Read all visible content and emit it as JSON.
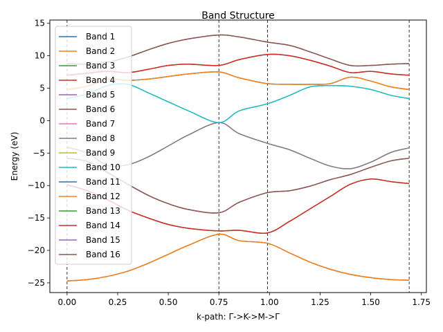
{
  "chart_data": {
    "type": "line",
    "title": "Band Structure",
    "xlabel": "k-path: Γ->K->M->Γ",
    "ylabel": "Energy (eV)",
    "xlim": [
      -0.085,
      1.775
    ],
    "ylim": [
      -26.5,
      15.5
    ],
    "xticks": [
      0.0,
      0.25,
      0.5,
      0.75,
      1.0,
      1.25,
      1.5,
      1.75
    ],
    "xtick_labels": [
      "0.00",
      "0.25",
      "0.50",
      "0.75",
      "1.00",
      "1.25",
      "1.50",
      "1.75"
    ],
    "yticks": [
      -25,
      -20,
      -15,
      -10,
      -5,
      0,
      5,
      10,
      15
    ],
    "ytick_labels": [
      "−25",
      "−20",
      "−15",
      "−10",
      "−5",
      "0",
      "5",
      "10",
      "15"
    ],
    "high_symmetry_lines": [
      0.0,
      0.75,
      0.99,
      1.69
    ],
    "grid": false,
    "legend_position": "upper-left",
    "series": [
      {
        "name": "Band 1",
        "color": "#1f77b4",
        "x": [
          0.0,
          0.1,
          0.2,
          0.3,
          0.4,
          0.5,
          0.6,
          0.75,
          0.85,
          0.99,
          1.1,
          1.2,
          1.3,
          1.4,
          1.5,
          1.6,
          1.69
        ],
        "values": [
          -24.7,
          -24.5,
          -24.0,
          -23.2,
          -22.0,
          -20.6,
          -19.2,
          -17.5,
          -18.5,
          -18.9,
          -20.4,
          -21.8,
          -22.9,
          -23.7,
          -24.2,
          -24.5,
          -24.6
        ]
      },
      {
        "name": "Band 2",
        "color": "#ff7f0e",
        "x": [
          0.0,
          0.1,
          0.2,
          0.3,
          0.4,
          0.5,
          0.6,
          0.75,
          0.85,
          0.99,
          1.1,
          1.2,
          1.3,
          1.4,
          1.5,
          1.6,
          1.69
        ],
        "values": [
          -24.7,
          -24.5,
          -24.0,
          -23.2,
          -22.0,
          -20.6,
          -19.2,
          -17.5,
          -18.5,
          -18.9,
          -20.4,
          -21.8,
          -22.9,
          -23.7,
          -24.2,
          -24.5,
          -24.6
        ]
      },
      {
        "name": "Band 3",
        "color": "#2ca02c",
        "x": [
          0.0,
          0.1,
          0.2,
          0.3,
          0.4,
          0.5,
          0.6,
          0.75,
          0.85,
          0.99,
          1.1,
          1.2,
          1.3,
          1.4,
          1.5,
          1.6,
          1.69
        ],
        "values": [
          -9.9,
          -10.8,
          -12.2,
          -13.8,
          -15.0,
          -16.0,
          -16.6,
          -17.0,
          -16.9,
          -17.3,
          -15.5,
          -13.6,
          -11.7,
          -9.8,
          -9.0,
          -9.4,
          -9.7
        ]
      },
      {
        "name": "Band 4",
        "color": "#d62728",
        "x": [
          0.0,
          0.1,
          0.2,
          0.3,
          0.4,
          0.5,
          0.6,
          0.75,
          0.85,
          0.99,
          1.1,
          1.2,
          1.3,
          1.4,
          1.5,
          1.6,
          1.69
        ],
        "values": [
          -9.9,
          -10.8,
          -12.2,
          -13.8,
          -15.0,
          -16.0,
          -16.6,
          -17.0,
          -16.9,
          -17.3,
          -15.5,
          -13.6,
          -11.7,
          -9.8,
          -9.0,
          -9.4,
          -9.7
        ]
      },
      {
        "name": "Band 5",
        "color": "#9467bd",
        "x": [
          0.0,
          0.1,
          0.2,
          0.3,
          0.4,
          0.5,
          0.6,
          0.75,
          0.85,
          0.99,
          1.1,
          1.2,
          1.3,
          1.4,
          1.5,
          1.6,
          1.69
        ],
        "values": [
          -5.8,
          -6.3,
          -8.0,
          -9.8,
          -11.5,
          -12.8,
          -13.7,
          -14.2,
          -12.6,
          -11.1,
          -10.8,
          -10.1,
          -9.1,
          -8.3,
          -7.2,
          -6.2,
          -5.8
        ]
      },
      {
        "name": "Band 6",
        "color": "#8c564b",
        "x": [
          0.0,
          0.1,
          0.2,
          0.3,
          0.4,
          0.5,
          0.6,
          0.75,
          0.85,
          0.99,
          1.1,
          1.2,
          1.3,
          1.4,
          1.5,
          1.6,
          1.69
        ],
        "values": [
          -5.8,
          -6.3,
          -8.0,
          -9.8,
          -11.5,
          -12.8,
          -13.7,
          -14.2,
          -12.6,
          -11.1,
          -10.8,
          -10.1,
          -9.1,
          -8.3,
          -7.2,
          -6.2,
          -5.8
        ]
      },
      {
        "name": "Band 7",
        "color": "#e377c2",
        "x": [
          0.0,
          0.1,
          0.2,
          0.3,
          0.4,
          0.5,
          0.6,
          0.75,
          0.85,
          0.99,
          1.1,
          1.2,
          1.3,
          1.4,
          1.5,
          1.6,
          1.69
        ],
        "values": [
          -4.1,
          -5.0,
          -6.9,
          -6.8,
          -5.6,
          -3.9,
          -2.2,
          -0.3,
          -2.0,
          -3.5,
          -4.5,
          -5.8,
          -7.0,
          -7.4,
          -6.4,
          -4.9,
          -4.2
        ]
      },
      {
        "name": "Band 8",
        "color": "#7f7f7f",
        "x": [
          0.0,
          0.1,
          0.2,
          0.3,
          0.4,
          0.5,
          0.6,
          0.75,
          0.85,
          0.99,
          1.1,
          1.2,
          1.3,
          1.4,
          1.5,
          1.6,
          1.69
        ],
        "values": [
          -4.1,
          -5.0,
          -6.9,
          -6.8,
          -5.6,
          -3.9,
          -2.2,
          -0.3,
          -2.0,
          -3.5,
          -4.5,
          -5.8,
          -7.0,
          -7.4,
          -6.4,
          -4.9,
          -4.2
        ]
      },
      {
        "name": "Band 9",
        "color": "#bcbd22",
        "x": [
          0.0,
          0.1,
          0.2,
          0.3,
          0.4,
          0.5,
          0.6,
          0.75,
          0.85,
          0.99,
          1.1,
          1.2,
          1.3,
          1.4,
          1.5,
          1.6,
          1.69
        ],
        "values": [
          3.4,
          4.1,
          5.4,
          5.6,
          4.3,
          2.9,
          1.5,
          -0.3,
          1.5,
          2.6,
          3.9,
          5.2,
          5.4,
          5.3,
          4.8,
          3.9,
          3.4
        ]
      },
      {
        "name": "Band 10",
        "color": "#17becf",
        "x": [
          0.0,
          0.1,
          0.2,
          0.3,
          0.4,
          0.5,
          0.6,
          0.75,
          0.85,
          0.99,
          1.1,
          1.2,
          1.3,
          1.4,
          1.5,
          1.6,
          1.69
        ],
        "values": [
          3.4,
          4.1,
          5.4,
          5.6,
          4.3,
          2.9,
          1.5,
          -0.3,
          1.5,
          2.6,
          3.9,
          5.2,
          5.4,
          5.3,
          4.8,
          3.9,
          3.4
        ]
      },
      {
        "name": "Band 11",
        "color": "#1f77b4",
        "x": [
          0.0,
          0.1,
          0.2,
          0.3,
          0.4,
          0.5,
          0.6,
          0.75,
          0.85,
          0.99,
          1.1,
          1.2,
          1.3,
          1.4,
          1.5,
          1.6,
          1.69
        ],
        "values": [
          4.8,
          5.3,
          6.4,
          6.2,
          6.4,
          6.8,
          7.2,
          7.5,
          6.6,
          5.7,
          5.6,
          5.6,
          5.7,
          6.7,
          6.1,
          5.2,
          4.8
        ]
      },
      {
        "name": "Band 12",
        "color": "#ff7f0e",
        "x": [
          0.0,
          0.1,
          0.2,
          0.3,
          0.4,
          0.5,
          0.6,
          0.75,
          0.85,
          0.99,
          1.1,
          1.2,
          1.3,
          1.4,
          1.5,
          1.6,
          1.69
        ],
        "values": [
          4.8,
          5.3,
          6.4,
          6.2,
          6.4,
          6.8,
          7.2,
          7.5,
          6.6,
          5.7,
          5.6,
          5.6,
          5.7,
          6.7,
          6.1,
          5.2,
          4.8
        ]
      },
      {
        "name": "Band 13",
        "color": "#2ca02c",
        "x": [
          0.0,
          0.1,
          0.2,
          0.3,
          0.4,
          0.5,
          0.6,
          0.75,
          0.85,
          0.99,
          1.1,
          1.2,
          1.3,
          1.4,
          1.5,
          1.6,
          1.69
        ],
        "values": [
          7.0,
          7.3,
          7.6,
          7.4,
          7.9,
          8.5,
          8.7,
          8.5,
          9.4,
          10.2,
          10.0,
          9.3,
          8.4,
          7.4,
          7.6,
          7.2,
          7.0
        ]
      },
      {
        "name": "Band 14",
        "color": "#d62728",
        "x": [
          0.0,
          0.1,
          0.2,
          0.3,
          0.4,
          0.5,
          0.6,
          0.75,
          0.85,
          0.99,
          1.1,
          1.2,
          1.3,
          1.4,
          1.5,
          1.6,
          1.69
        ],
        "values": [
          7.0,
          7.3,
          7.6,
          7.4,
          7.9,
          8.5,
          8.7,
          8.5,
          9.4,
          10.2,
          10.0,
          9.3,
          8.4,
          7.4,
          7.6,
          7.2,
          7.0
        ]
      },
      {
        "name": "Band 15",
        "color": "#9467bd",
        "x": [
          0.0,
          0.1,
          0.2,
          0.3,
          0.4,
          0.5,
          0.6,
          0.75,
          0.85,
          0.99,
          1.1,
          1.2,
          1.3,
          1.4,
          1.5,
          1.6,
          1.69
        ],
        "values": [
          8.8,
          8.7,
          9.0,
          9.8,
          10.9,
          11.9,
          12.6,
          13.2,
          12.9,
          12.1,
          11.6,
          10.6,
          9.5,
          8.5,
          8.5,
          8.7,
          8.8
        ]
      },
      {
        "name": "Band 16",
        "color": "#8c564b",
        "x": [
          0.0,
          0.1,
          0.2,
          0.3,
          0.4,
          0.5,
          0.6,
          0.75,
          0.85,
          0.99,
          1.1,
          1.2,
          1.3,
          1.4,
          1.5,
          1.6,
          1.69
        ],
        "values": [
          8.8,
          8.7,
          9.0,
          9.8,
          10.9,
          11.9,
          12.6,
          13.2,
          12.9,
          12.1,
          11.6,
          10.6,
          9.5,
          8.5,
          8.5,
          8.7,
          8.8
        ]
      }
    ]
  }
}
